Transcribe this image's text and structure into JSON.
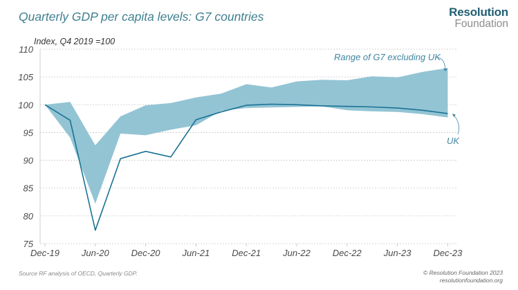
{
  "header": {
    "title": "Quarterly GDP per capita levels: G7 countries",
    "logo_line1": "Resolution",
    "logo_line2": "Foundation"
  },
  "footer": {
    "source": "Source RF analysis of OECD, Quarterly GDP.",
    "copyright": "© Resolution Foundation 2023",
    "website": "resolutionfoundation.org"
  },
  "colors": {
    "band": "#93c4d4",
    "uk_line": "#1a7294",
    "title": "#3f7f90",
    "annotation": "#3f86a0",
    "grid": "#c8c8c8"
  },
  "chart_data": {
    "type": "area",
    "title": "Quarterly GDP per capita levels: G7 countries",
    "ylabel": "Index, Q4 2019 =100",
    "xlabel": "",
    "ylim": [
      75,
      110
    ],
    "yticks": [
      75,
      80,
      85,
      90,
      95,
      100,
      105,
      110
    ],
    "x": [
      "Dec-19",
      "Mar-20",
      "Jun-20",
      "Sep-20",
      "Dec-20",
      "Mar-21",
      "Jun-21",
      "Sep-21",
      "Dec-21",
      "Mar-22",
      "Jun-22",
      "Sep-22",
      "Dec-22",
      "Mar-23",
      "Jun-23",
      "Sep-23",
      "Dec-23"
    ],
    "xtick_labels": [
      "Dec-19",
      "Jun-20",
      "Dec-20",
      "Jun-21",
      "Dec-21",
      "Jun-22",
      "Dec-22",
      "Jun-23",
      "Dec-23"
    ],
    "grid": true,
    "series": [
      {
        "name": "Range of G7 excluding UK (upper)",
        "values": [
          100,
          100.5,
          92.7,
          97.9,
          99.9,
          100.3,
          101.3,
          102.0,
          103.7,
          103.1,
          104.2,
          104.5,
          104.4,
          105.1,
          104.9,
          105.9,
          106.6
        ]
      },
      {
        "name": "Range of G7 excluding UK (lower)",
        "values": [
          100,
          94.1,
          82.2,
          94.8,
          94.5,
          95.5,
          96.3,
          98.9,
          99.4,
          99.5,
          99.6,
          99.7,
          99.0,
          98.8,
          98.7,
          98.3,
          97.7
        ]
      },
      {
        "name": "UK",
        "values": [
          100,
          97.2,
          77.4,
          90.3,
          91.6,
          90.6,
          97.3,
          98.7,
          99.9,
          100.1,
          100.0,
          99.8,
          99.7,
          99.6,
          99.4,
          99.0,
          98.4
        ]
      }
    ],
    "annotations": [
      {
        "text": "Range of G7 excluding UK",
        "points_to": "band"
      },
      {
        "text": "UK",
        "points_to": "UK line"
      }
    ]
  }
}
